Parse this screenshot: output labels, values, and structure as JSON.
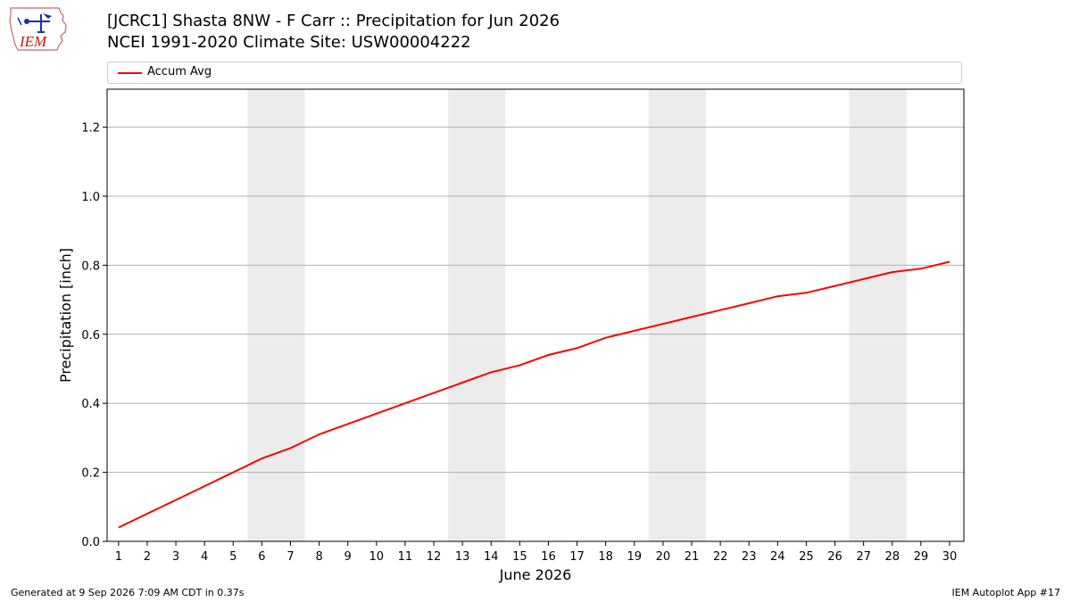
{
  "header": {
    "logo_text": "IEM",
    "title_line1": "[JCRC1] Shasta 8NW - F Carr :: Precipitation for Jun 2026",
    "title_line2": "NCEI 1991-2020 Climate Site: USW00004222"
  },
  "footer": {
    "generated": "Generated at 9 Sep 2026 7:09 AM CDT in 0.37s",
    "app": "IEM Autoplot App #17"
  },
  "colors": {
    "line": "#ff0000",
    "weekend_band": "#ececec",
    "grid": "#b0b0b0",
    "logo_blue": "#1a2bb3",
    "logo_red": "#cc1111"
  },
  "chart_data": {
    "type": "line",
    "xlabel": "June 2026",
    "ylabel": "Precipitation [inch]",
    "xlim": [
      0.6,
      30.5
    ],
    "ylim": [
      0.0,
      1.31
    ],
    "yticks": [
      0.0,
      0.2,
      0.4,
      0.6,
      0.8,
      1.0,
      1.2
    ],
    "ytick_labels": [
      "0.0",
      "0.2",
      "0.4",
      "0.6",
      "0.8",
      "1.0",
      "1.2"
    ],
    "x": [
      1,
      2,
      3,
      4,
      5,
      6,
      7,
      8,
      9,
      10,
      11,
      12,
      13,
      14,
      15,
      16,
      17,
      18,
      19,
      20,
      21,
      22,
      23,
      24,
      25,
      26,
      27,
      28,
      29,
      30
    ],
    "xtick_labels": [
      "1",
      "2",
      "3",
      "4",
      "5",
      "6",
      "7",
      "8",
      "9",
      "10",
      "11",
      "12",
      "13",
      "14",
      "15",
      "16",
      "17",
      "18",
      "19",
      "20",
      "21",
      "22",
      "23",
      "24",
      "25",
      "26",
      "27",
      "28",
      "29",
      "30"
    ],
    "shaded_ranges": [
      [
        5.5,
        7.5
      ],
      [
        12.5,
        14.5
      ],
      [
        19.5,
        21.5
      ],
      [
        26.5,
        28.5
      ]
    ],
    "grid": "horizontal",
    "legend_position": "top",
    "series": [
      {
        "name": "Accum Avg",
        "values": [
          0.04,
          0.08,
          0.12,
          0.16,
          0.2,
          0.24,
          0.27,
          0.31,
          0.34,
          0.37,
          0.4,
          0.43,
          0.46,
          0.49,
          0.51,
          0.54,
          0.56,
          0.59,
          0.61,
          0.63,
          0.65,
          0.67,
          0.69,
          0.71,
          0.72,
          0.74,
          0.76,
          0.78,
          0.79,
          0.81
        ]
      }
    ]
  }
}
